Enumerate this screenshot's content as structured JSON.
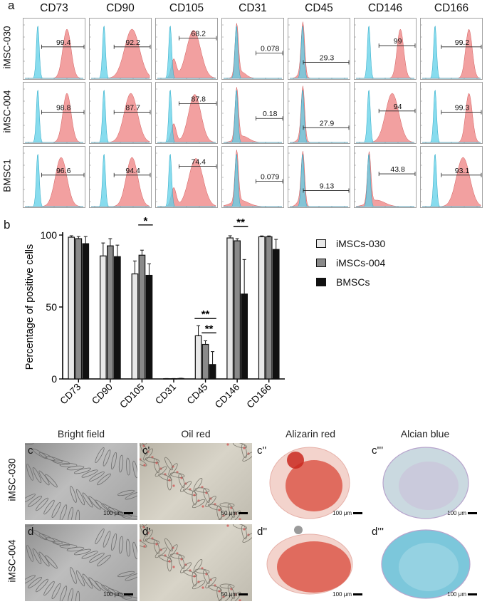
{
  "panel_a": {
    "letter": "a",
    "markers": [
      "CD73",
      "CD90",
      "CD105",
      "CD31",
      "CD45",
      "CD146",
      "CD166"
    ],
    "rows": [
      {
        "label": "iMSC-030",
        "values": [
          "99.4",
          "92.2",
          "68.2",
          "0.078",
          "29.3",
          "99",
          "99.2"
        ]
      },
      {
        "label": "iMSC-004",
        "values": [
          "98.8",
          "87.7",
          "87.8",
          "0.18",
          "27.9",
          "94",
          "99.3"
        ]
      },
      {
        "label": "BMSC1",
        "values": [
          "96.6",
          "94.4",
          "74.4",
          "0.079",
          "9.13",
          "43.8",
          "93.1"
        ]
      }
    ],
    "colors": {
      "isotype": "#5fd0e8",
      "stained": "#f08f8f"
    }
  },
  "panel_b": {
    "letter": "b"
  },
  "chart_data": {
    "type": "bar",
    "ylabel": "Percentage of positive cells",
    "ylim": [
      0,
      100
    ],
    "yticks": [
      "0",
      "50",
      "100"
    ],
    "categories": [
      "CD73",
      "CD90",
      "CD105",
      "CD31",
      "CD45",
      "CD146",
      "CD166"
    ],
    "series": [
      {
        "name": "iMSCs-030",
        "color": "#e8e8e8",
        "values": [
          98.5,
          85.5,
          73,
          0.2,
          30,
          98,
          98.8
        ],
        "errors": [
          1,
          9,
          9,
          0.1,
          7,
          1.5,
          0.6
        ]
      },
      {
        "name": "iMSCs-004",
        "color": "#8a8a8a",
        "values": [
          97.5,
          92.5,
          86,
          0.2,
          24,
          96,
          98.8
        ],
        "errors": [
          1.5,
          5,
          3.5,
          0.1,
          2.5,
          1.5,
          0.6
        ]
      },
      {
        "name": "BMSCs",
        "color": "#111111",
        "values": [
          94,
          85,
          72,
          0.3,
          10,
          59,
          90
        ],
        "errors": [
          5,
          8,
          8,
          0.2,
          9,
          24,
          7
        ]
      }
    ],
    "significance": [
      {
        "category": "CD105",
        "from": 1,
        "to": 2,
        "label": "*",
        "y": 107
      },
      {
        "category": "CD45",
        "from": 0,
        "to": 2,
        "label": "**",
        "y": 42
      },
      {
        "category": "CD45",
        "from": 1,
        "to": 2,
        "label": "**",
        "y": 32
      },
      {
        "category": "CD146",
        "from": 0,
        "to": 2,
        "label": "**",
        "y": 117
      },
      {
        "category": "CD146",
        "from": 1,
        "to": 2,
        "label": "**",
        "y": 106
      }
    ],
    "legend_position": "right"
  },
  "panel_c": {
    "column_titles": [
      "Bright field",
      "Oil red",
      "Alizarin red",
      "Alcian blue"
    ],
    "rows": [
      {
        "label": "iMSC-030",
        "tiles": [
          {
            "letter": "c",
            "scale": "100 μm"
          },
          {
            "letter": "c'",
            "scale": "50 μm"
          },
          {
            "letter": "c''",
            "scale": "100 μm"
          },
          {
            "letter": "c'''",
            "scale": "100 μm"
          }
        ]
      },
      {
        "label": "iMSC-004",
        "tiles": [
          {
            "letter": "d",
            "scale": "100 μm"
          },
          {
            "letter": "d'",
            "scale": "50 μm"
          },
          {
            "letter": "d''",
            "scale": "100 μm"
          },
          {
            "letter": "d'''",
            "scale": "100 μm"
          }
        ]
      }
    ]
  }
}
